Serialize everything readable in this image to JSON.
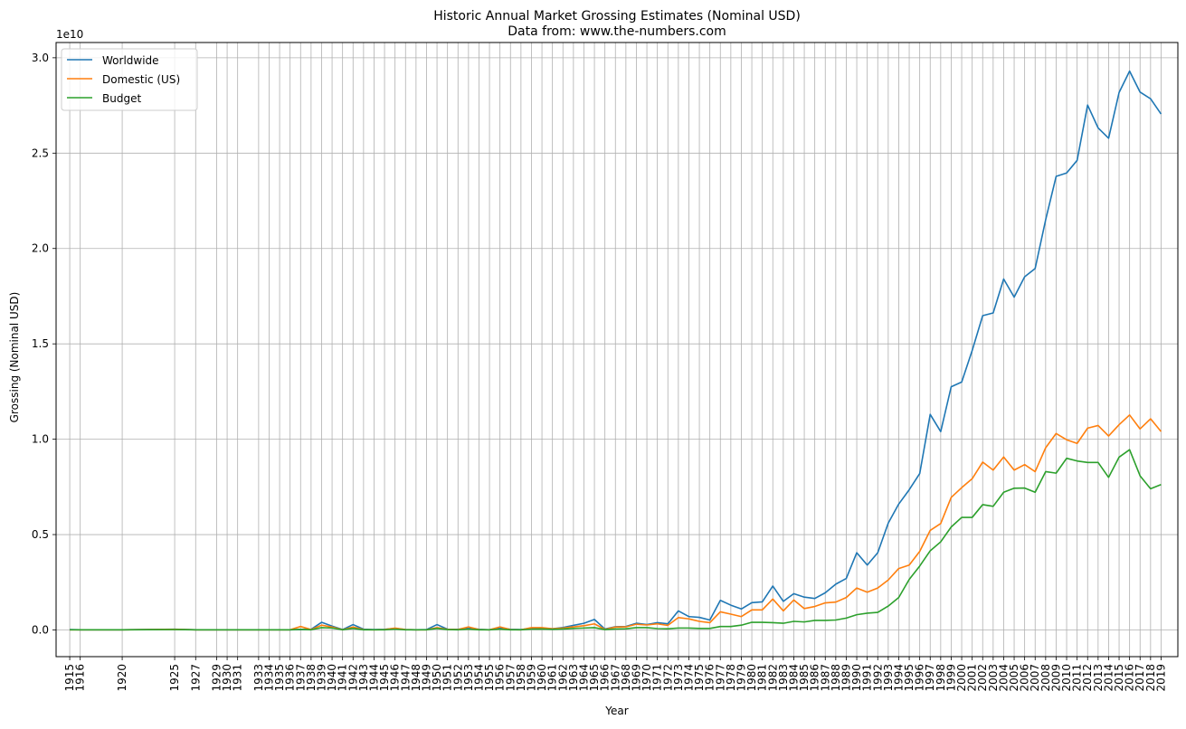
{
  "chart_data": {
    "type": "line",
    "title": "Historic Annual Market Grossing Estimates (Nominal USD)",
    "subtitle": "Data from: www.the-numbers.com",
    "xlabel": "Year",
    "ylabel": "Grossing (Nominal USD)",
    "y_offset_label": "1e10",
    "ylim": [
      -0.14,
      3.08
    ],
    "xlim": [
      1913.7,
      2020.6
    ],
    "y_unit_scale": "1e10",
    "y_ticks": [
      0.0,
      0.5,
      1.0,
      1.5,
      2.0,
      2.5,
      3.0
    ],
    "y_tick_labels": [
      "0.0",
      "0.5",
      "1.0",
      "1.5",
      "2.0",
      "2.5",
      "3.0"
    ],
    "x_ticks": [
      1915,
      1916,
      1920,
      1925,
      1927,
      1929,
      1930,
      1931,
      1933,
      1934,
      1935,
      1936,
      1937,
      1938,
      1939,
      1940,
      1941,
      1942,
      1943,
      1944,
      1945,
      1946,
      1947,
      1948,
      1949,
      1950,
      1951,
      1952,
      1953,
      1954,
      1955,
      1956,
      1957,
      1958,
      1959,
      1960,
      1961,
      1962,
      1963,
      1964,
      1965,
      1966,
      1967,
      1968,
      1969,
      1970,
      1971,
      1972,
      1973,
      1974,
      1975,
      1976,
      1977,
      1978,
      1979,
      1980,
      1981,
      1982,
      1983,
      1984,
      1985,
      1986,
      1987,
      1988,
      1989,
      1990,
      1991,
      1992,
      1993,
      1994,
      1995,
      1996,
      1997,
      1998,
      1999,
      2000,
      2001,
      2002,
      2003,
      2004,
      2005,
      2006,
      2007,
      2008,
      2009,
      2010,
      2011,
      2012,
      2013,
      2014,
      2015,
      2016,
      2017,
      2018,
      2019
    ],
    "grid": true,
    "legend_position": "top-left",
    "x": [
      1915,
      1916,
      1920,
      1925,
      1927,
      1929,
      1930,
      1931,
      1933,
      1934,
      1935,
      1936,
      1937,
      1938,
      1939,
      1940,
      1941,
      1942,
      1943,
      1944,
      1945,
      1946,
      1947,
      1948,
      1949,
      1950,
      1951,
      1952,
      1953,
      1954,
      1955,
      1956,
      1957,
      1958,
      1959,
      1960,
      1961,
      1962,
      1963,
      1964,
      1965,
      1966,
      1967,
      1968,
      1969,
      1970,
      1971,
      1972,
      1973,
      1974,
      1975,
      1976,
      1977,
      1978,
      1979,
      1980,
      1981,
      1982,
      1983,
      1984,
      1985,
      1986,
      1987,
      1988,
      1989,
      1990,
      1991,
      1992,
      1993,
      1994,
      1995,
      1996,
      1997,
      1998,
      1999,
      2000,
      2001,
      2002,
      2003,
      2004,
      2005,
      2006,
      2007,
      2008,
      2009,
      2010,
      2011,
      2012,
      2013,
      2014,
      2015,
      2016,
      2017,
      2018,
      2019
    ],
    "series": [
      {
        "name": "Worldwide",
        "color": "#1f77b4",
        "values": [
          0.002,
          0.001,
          0.001,
          0.004,
          0.001,
          0.001,
          0.001,
          0.001,
          0.001,
          0.001,
          0.001,
          0.001,
          0.002,
          0.003,
          0.04,
          0.02,
          0.002,
          0.028,
          0.004,
          0.002,
          0.003,
          0.008,
          0.002,
          0.001,
          0.002,
          0.028,
          0.004,
          0.003,
          0.012,
          0.003,
          0.001,
          0.01,
          0.003,
          0.002,
          0.008,
          0.01,
          0.006,
          0.013,
          0.024,
          0.035,
          0.055,
          0.005,
          0.017,
          0.018,
          0.035,
          0.028,
          0.038,
          0.032,
          0.1,
          0.07,
          0.066,
          0.052,
          0.155,
          0.13,
          0.11,
          0.143,
          0.147,
          0.23,
          0.15,
          0.19,
          0.172,
          0.165,
          0.195,
          0.24,
          0.27,
          0.405,
          0.34,
          0.405,
          0.56,
          0.66,
          0.735,
          0.82,
          1.13,
          1.04,
          1.275,
          1.3,
          1.465,
          1.648,
          1.662,
          1.84,
          1.745,
          1.852,
          1.895,
          2.15,
          2.378,
          2.396,
          2.462,
          2.752,
          2.632,
          2.578,
          2.818,
          2.93,
          2.82,
          2.785,
          2.705
        ]
      },
      {
        "name": "Domestic (US)",
        "color": "#ff7f0e",
        "values": [
          0.001,
          0.001,
          0.001,
          0.003,
          0.001,
          0.001,
          0.001,
          0.001,
          0.001,
          0.001,
          0.001,
          0.001,
          0.018,
          0.002,
          0.025,
          0.015,
          0.001,
          0.015,
          0.002,
          0.001,
          0.002,
          0.01,
          0.002,
          0.001,
          0.001,
          0.012,
          0.003,
          0.002,
          0.016,
          0.002,
          0.001,
          0.016,
          0.002,
          0.001,
          0.012,
          0.012,
          0.006,
          0.01,
          0.016,
          0.022,
          0.032,
          0.003,
          0.015,
          0.016,
          0.03,
          0.026,
          0.032,
          0.024,
          0.065,
          0.058,
          0.045,
          0.038,
          0.095,
          0.083,
          0.07,
          0.105,
          0.105,
          0.162,
          0.1,
          0.157,
          0.112,
          0.123,
          0.142,
          0.146,
          0.17,
          0.22,
          0.198,
          0.22,
          0.262,
          0.322,
          0.34,
          0.412,
          0.522,
          0.558,
          0.695,
          0.746,
          0.793,
          0.88,
          0.838,
          0.907,
          0.838,
          0.867,
          0.83,
          0.955,
          1.03,
          0.997,
          0.978,
          1.058,
          1.072,
          1.017,
          1.076,
          1.127,
          1.054,
          1.107,
          1.04
        ]
      },
      {
        "name": "Budget",
        "color": "#2ca02c",
        "values": [
          0.001,
          0.001,
          0.001,
          0.002,
          0.001,
          0.001,
          0.001,
          0.001,
          0.001,
          0.001,
          0.001,
          0.001,
          0.003,
          0.001,
          0.012,
          0.01,
          0.001,
          0.008,
          0.001,
          0.001,
          0.001,
          0.004,
          0.001,
          0.001,
          0.001,
          0.008,
          0.002,
          0.001,
          0.004,
          0.001,
          0.001,
          0.004,
          0.001,
          0.001,
          0.004,
          0.005,
          0.003,
          0.005,
          0.008,
          0.01,
          0.012,
          0.002,
          0.005,
          0.006,
          0.012,
          0.012,
          0.007,
          0.006,
          0.01,
          0.01,
          0.008,
          0.008,
          0.018,
          0.018,
          0.025,
          0.04,
          0.04,
          0.038,
          0.035,
          0.045,
          0.042,
          0.05,
          0.05,
          0.052,
          0.062,
          0.08,
          0.088,
          0.092,
          0.125,
          0.17,
          0.265,
          0.335,
          0.415,
          0.462,
          0.54,
          0.59,
          0.59,
          0.657,
          0.648,
          0.722,
          0.743,
          0.744,
          0.722,
          0.83,
          0.822,
          0.9,
          0.886,
          0.878,
          0.878,
          0.8,
          0.906,
          0.945,
          0.808,
          0.74,
          0.762
        ]
      }
    ]
  }
}
